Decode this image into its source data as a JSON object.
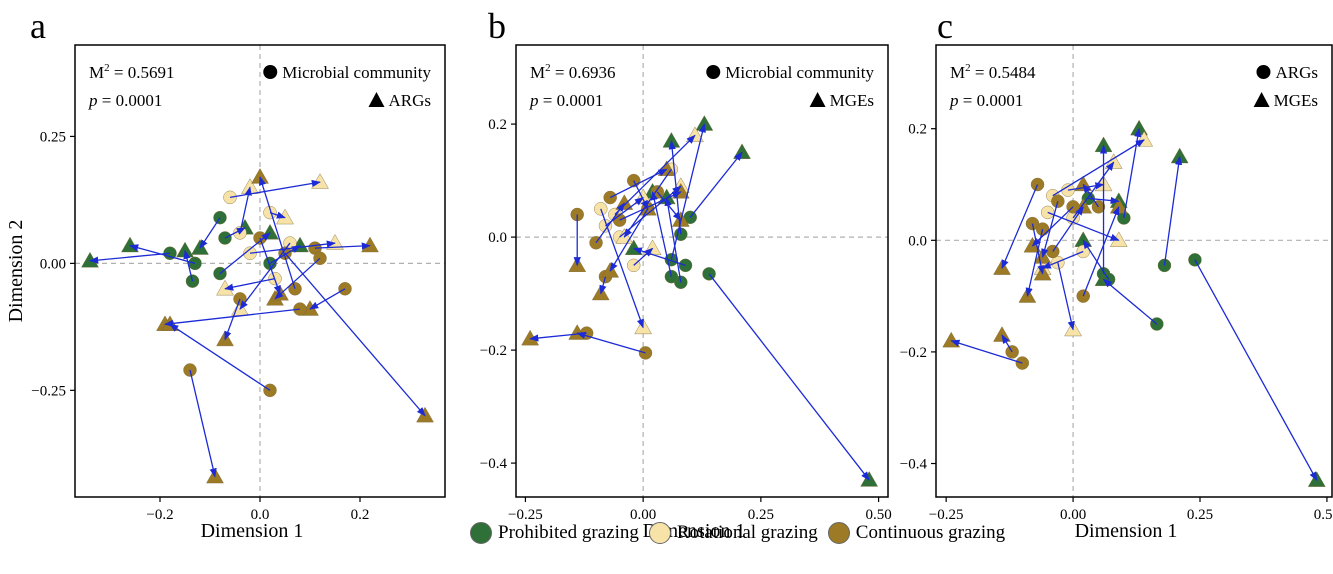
{
  "colors": {
    "prohibited": "#2e7037",
    "rotational": "#f7e3a8",
    "continuous": "#9c7a26",
    "arrow": "#1c2bd6"
  },
  "legend": {
    "items": [
      {
        "label": "Prohibited grazing",
        "color": "#2e7037"
      },
      {
        "label": "Rotational grazing",
        "color": "#f7e3a8"
      },
      {
        "label": "Continuous grazing",
        "color": "#9c7a26"
      }
    ]
  },
  "chart_data": [
    {
      "type": "scatter",
      "panel_label": "a",
      "xlabel": "Dimension 1",
      "ylabel": "Dimension 2",
      "xlim": [
        -0.37,
        0.37
      ],
      "ylim": [
        -0.46,
        0.43
      ],
      "xticks": [
        -0.2,
        0.0,
        0.2
      ],
      "xtick_labels": [
        "−0.2",
        "0.0",
        "0.2"
      ],
      "yticks": [
        -0.25,
        0.0,
        0.25
      ],
      "ytick_labels": [
        "−0.25",
        "0.00",
        "0.25"
      ],
      "stat_m2": "= 0.5691",
      "stat_p": "= 0.0001",
      "shape_legend": {
        "circle": "Microbial community",
        "triangle": "ARGs"
      },
      "pairs": [
        {
          "g": "P",
          "c": [
            -0.18,
            0.02
          ],
          "t": [
            -0.34,
            0.005
          ]
        },
        {
          "g": "P",
          "c": [
            -0.13,
            0.0
          ],
          "t": [
            -0.26,
            0.035
          ]
        },
        {
          "g": "P",
          "c": [
            -0.135,
            -0.035
          ],
          "t": [
            -0.15,
            0.025
          ]
        },
        {
          "g": "P",
          "c": [
            -0.08,
            0.09
          ],
          "t": [
            -0.12,
            0.03
          ]
        },
        {
          "g": "P",
          "c": [
            -0.07,
            0.05
          ],
          "t": [
            -0.03,
            0.07
          ]
        },
        {
          "g": "P",
          "c": [
            -0.08,
            -0.02
          ],
          "t": [
            0.02,
            0.06
          ]
        },
        {
          "g": "P",
          "c": [
            0.02,
            0.0
          ],
          "t": [
            0.08,
            0.035
          ]
        },
        {
          "g": "R",
          "c": [
            -0.06,
            0.13
          ],
          "t": [
            0.12,
            0.16
          ]
        },
        {
          "g": "R",
          "c": [
            -0.04,
            0.06
          ],
          "t": [
            -0.02,
            0.15
          ]
        },
        {
          "g": "R",
          "c": [
            -0.02,
            0.02
          ],
          "t": [
            0.15,
            0.04
          ]
        },
        {
          "g": "R",
          "c": [
            0.03,
            -0.03
          ],
          "t": [
            -0.07,
            -0.05
          ]
        },
        {
          "g": "R",
          "c": [
            0.06,
            0.04
          ],
          "t": [
            -0.04,
            -0.09
          ]
        },
        {
          "g": "R",
          "c": [
            0.02,
            0.1
          ],
          "t": [
            0.05,
            0.09
          ]
        },
        {
          "g": "C",
          "c": [
            0.11,
            0.03
          ],
          "t": [
            0.22,
            0.035
          ]
        },
        {
          "g": "C",
          "c": [
            0.07,
            -0.05
          ],
          "t": [
            0.0,
            0.17
          ]
        },
        {
          "g": "C",
          "c": [
            0.12,
            0.01
          ],
          "t": [
            0.03,
            -0.07
          ]
        },
        {
          "g": "C",
          "c": [
            -0.04,
            -0.07
          ],
          "t": [
            -0.07,
            -0.15
          ]
        },
        {
          "g": "C",
          "c": [
            0.17,
            -0.05
          ],
          "t": [
            0.1,
            -0.09
          ]
        },
        {
          "g": "C",
          "c": [
            0.08,
            -0.09
          ],
          "t": [
            -0.19,
            -0.12
          ]
        },
        {
          "g": "C",
          "c": [
            -0.14,
            -0.21
          ],
          "t": [
            -0.09,
            -0.42
          ]
        },
        {
          "g": "C",
          "c": [
            0.02,
            -0.25
          ],
          "t": [
            -0.18,
            -0.12
          ]
        },
        {
          "g": "C",
          "c": [
            0.05,
            0.02
          ],
          "t": [
            0.33,
            -0.3
          ]
        },
        {
          "g": "C",
          "c": [
            0.0,
            0.05
          ],
          "t": [
            0.04,
            -0.06
          ]
        }
      ]
    },
    {
      "type": "scatter",
      "panel_label": "b",
      "xlabel": "Dimension 1",
      "ylabel": "",
      "xlim": [
        -0.27,
        0.52
      ],
      "ylim": [
        -0.46,
        0.34
      ],
      "xticks": [
        -0.25,
        0.0,
        0.25,
        0.5
      ],
      "xtick_labels": [
        "−0.25",
        "0.00",
        "0.25",
        "0.50"
      ],
      "yticks": [
        -0.4,
        -0.2,
        0.0,
        0.2
      ],
      "ytick_labels": [
        "−0.4",
        "−0.2",
        "0.0",
        "0.2"
      ],
      "stat_m2": "= 0.6936",
      "stat_p": "= 0.0001",
      "shape_legend": {
        "circle": "Microbial community",
        "triangle": "MGEs"
      },
      "pairs": [
        {
          "g": "P",
          "c": [
            0.1,
            0.035
          ],
          "t": [
            0.21,
            0.15
          ]
        },
        {
          "g": "P",
          "c": [
            0.06,
            -0.04
          ],
          "t": [
            0.13,
            0.2
          ]
        },
        {
          "g": "P",
          "c": [
            0.08,
            0.005
          ],
          "t": [
            0.06,
            0.17
          ]
        },
        {
          "g": "P",
          "c": [
            0.08,
            -0.08
          ],
          "t": [
            0.05,
            0.07
          ]
        },
        {
          "g": "P",
          "c": [
            0.09,
            -0.05
          ],
          "t": [
            -0.02,
            -0.02
          ]
        },
        {
          "g": "P",
          "c": [
            0.06,
            -0.07
          ],
          "t": [
            0.02,
            0.08
          ]
        },
        {
          "g": "P",
          "c": [
            0.14,
            -0.065
          ],
          "t": [
            0.48,
            -0.43
          ]
        },
        {
          "g": "R",
          "c": [
            -0.06,
            0.04
          ],
          "t": [
            0.11,
            0.18
          ]
        },
        {
          "g": "R",
          "c": [
            -0.05,
            0.0
          ],
          "t": [
            0.08,
            0.09
          ]
        },
        {
          "g": "R",
          "c": [
            -0.08,
            0.02
          ],
          "t": [
            0.0,
            0.07
          ]
        },
        {
          "g": "R",
          "c": [
            -0.02,
            -0.05
          ],
          "t": [
            0.02,
            -0.02
          ]
        },
        {
          "g": "R",
          "c": [
            0.06,
            0.12
          ],
          "t": [
            -0.04,
            0.0
          ]
        },
        {
          "g": "R",
          "c": [
            -0.09,
            0.05
          ],
          "t": [
            0.0,
            -0.16
          ]
        },
        {
          "g": "C",
          "c": [
            -0.14,
            0.04
          ],
          "t": [
            -0.14,
            -0.05
          ]
        },
        {
          "g": "C",
          "c": [
            -0.1,
            -0.01
          ],
          "t": [
            -0.04,
            0.06
          ]
        },
        {
          "g": "C",
          "c": [
            -0.07,
            0.07
          ],
          "t": [
            0.05,
            0.12
          ]
        },
        {
          "g": "C",
          "c": [
            -0.08,
            -0.07
          ],
          "t": [
            -0.09,
            -0.1
          ]
        },
        {
          "g": "C",
          "c": [
            -0.05,
            0.03
          ],
          "t": [
            0.08,
            0.08
          ]
        },
        {
          "g": "C",
          "c": [
            0.01,
            0.05
          ],
          "t": [
            -0.07,
            -0.06
          ]
        },
        {
          "g": "C",
          "c": [
            -0.12,
            -0.17
          ],
          "t": [
            -0.24,
            -0.18
          ]
        },
        {
          "g": "C",
          "c": [
            0.005,
            -0.205
          ],
          "t": [
            -0.14,
            -0.17
          ]
        },
        {
          "g": "C",
          "c": [
            0.03,
            0.08
          ],
          "t": [
            0.08,
            0.03
          ]
        },
        {
          "g": "C",
          "c": [
            -0.02,
            0.1
          ],
          "t": [
            0.01,
            0.05
          ]
        }
      ]
    },
    {
      "type": "scatter",
      "panel_label": "c",
      "xlabel": "Dimension 1",
      "ylabel": "",
      "xlim": [
        -0.27,
        0.51
      ],
      "ylim": [
        -0.46,
        0.35
      ],
      "xticks": [
        -0.25,
        0.0,
        0.25,
        0.5
      ],
      "xtick_labels": [
        "−0.25",
        "0.00",
        "0.25",
        "0.50"
      ],
      "yticks": [
        -0.4,
        -0.2,
        0.0,
        0.2
      ],
      "ytick_labels": [
        "−0.4",
        "−0.2",
        "0.0",
        "0.2"
      ],
      "stat_m2": "= 0.5484",
      "stat_p": "= 0.0001",
      "shape_legend": {
        "circle": "ARGs",
        "triangle": "MGEs"
      },
      "pairs": [
        {
          "g": "P",
          "c": [
            0.24,
            -0.035
          ],
          "t": [
            0.48,
            -0.43
          ]
        },
        {
          "g": "P",
          "c": [
            0.18,
            -0.045
          ],
          "t": [
            0.21,
            0.15
          ]
        },
        {
          "g": "P",
          "c": [
            0.165,
            -0.15
          ],
          "t": [
            0.06,
            -0.07
          ]
        },
        {
          "g": "P",
          "c": [
            0.1,
            0.04
          ],
          "t": [
            0.13,
            0.2
          ]
        },
        {
          "g": "P",
          "c": [
            0.06,
            -0.06
          ],
          "t": [
            0.06,
            0.17
          ]
        },
        {
          "g": "P",
          "c": [
            0.07,
            -0.07
          ],
          "t": [
            0.02,
            0.0
          ]
        },
        {
          "g": "P",
          "c": [
            0.03,
            0.075
          ],
          "t": [
            0.09,
            0.07
          ]
        },
        {
          "g": "R",
          "c": [
            -0.04,
            0.08
          ],
          "t": [
            0.14,
            0.18
          ]
        },
        {
          "g": "R",
          "c": [
            0.0,
            0.04
          ],
          "t": [
            0.08,
            0.14
          ]
        },
        {
          "g": "R",
          "c": [
            -0.03,
            -0.04
          ],
          "t": [
            0.0,
            -0.16
          ]
        },
        {
          "g": "R",
          "c": [
            0.02,
            -0.02
          ],
          "t": [
            -0.06,
            -0.05
          ]
        },
        {
          "g": "R",
          "c": [
            -0.05,
            0.05
          ],
          "t": [
            0.09,
            0.0
          ]
        },
        {
          "g": "R",
          "c": [
            -0.01,
            0.09
          ],
          "t": [
            0.06,
            0.1
          ]
        },
        {
          "g": "C",
          "c": [
            -0.07,
            0.1
          ],
          "t": [
            -0.14,
            -0.05
          ]
        },
        {
          "g": "C",
          "c": [
            -0.06,
            0.02
          ],
          "t": [
            -0.09,
            -0.1
          ]
        },
        {
          "g": "C",
          "c": [
            0.02,
            -0.1
          ],
          "t": [
            0.09,
            0.06
          ]
        },
        {
          "g": "C",
          "c": [
            -0.03,
            0.07
          ],
          "t": [
            -0.06,
            -0.03
          ]
        },
        {
          "g": "C",
          "c": [
            0.05,
            0.06
          ],
          "t": [
            0.02,
            0.1
          ]
        },
        {
          "g": "C",
          "c": [
            -0.1,
            -0.22
          ],
          "t": [
            -0.24,
            -0.18
          ]
        },
        {
          "g": "C",
          "c": [
            -0.12,
            -0.2
          ],
          "t": [
            -0.14,
            -0.17
          ]
        },
        {
          "g": "C",
          "c": [
            -0.08,
            0.03
          ],
          "t": [
            -0.06,
            -0.06
          ]
        },
        {
          "g": "C",
          "c": [
            -0.04,
            -0.02
          ],
          "t": [
            0.02,
            0.06
          ]
        },
        {
          "g": "C",
          "c": [
            0.0,
            0.06
          ],
          "t": [
            -0.08,
            -0.01
          ]
        }
      ]
    }
  ]
}
